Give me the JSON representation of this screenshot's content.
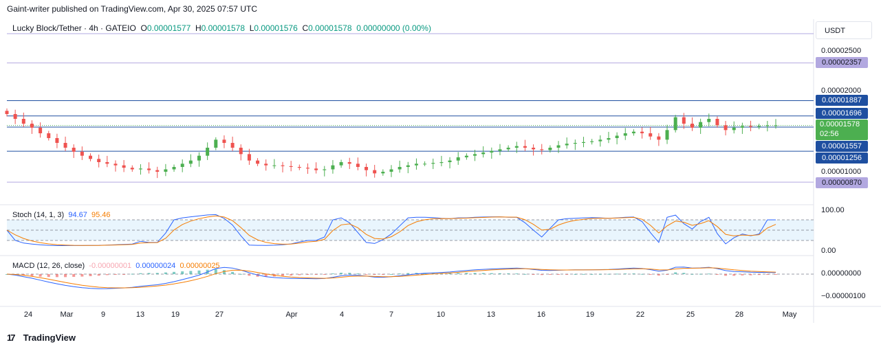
{
  "header": {
    "published": "Gaint-writer published on TradingView.com, Apr 30, 2025 07:57 UTC"
  },
  "legend": {
    "symbol": "Lucky Block/Tether · 4h · GATEIO",
    "o_label": "O",
    "o": "0.00001577",
    "h_label": "H",
    "h": "0.00001578",
    "l_label": "L",
    "l": "0.00001576",
    "c_label": "C",
    "c": "0.00001578",
    "change": "0.00000000 (0.00%)"
  },
  "currency": "USDT",
  "price_axis_ticks": [
    "0.00002500",
    "0.00002000",
    "0.00001000"
  ],
  "price_labels": [
    {
      "value": "0.00002357",
      "color": "#b2a8e0"
    },
    {
      "value": "0.00001887",
      "color": "#1e4fa0"
    },
    {
      "value": "0.00001696",
      "color": "#1e4fa0"
    },
    {
      "value": "0.00001578",
      "color": "#4caf50",
      "countdown": "02:56"
    },
    {
      "value": "0.00001557",
      "color": "#1e4fa0"
    },
    {
      "value": "0.00001256",
      "color": "#1e4fa0"
    },
    {
      "value": "0.00000870",
      "color": "#b2a8e0"
    }
  ],
  "stoch": {
    "name": "Stoch (14, 1, 3)",
    "k": "94.67",
    "d": "95.46",
    "ticks": [
      "100.00",
      "0.00"
    ],
    "k_color": "#2962ff",
    "d_color": "#f57c00"
  },
  "macd": {
    "name": "MACD (12, 26, close)",
    "hist": "-0.00000001",
    "macd": "0.00000024",
    "signal": "0.00000025",
    "ticks": [
      "0.00000000",
      "−0.00000100"
    ],
    "hist_color": "#f7a5b0",
    "macd_color": "#2962ff",
    "signal_color": "#f57c00"
  },
  "x_axis": [
    "24",
    "Mar",
    "9",
    "13",
    "19",
    "27",
    "Apr",
    "4",
    "7",
    "10",
    "13",
    "16",
    "19",
    "22",
    "25",
    "28",
    "May"
  ],
  "footer": {
    "brand": "TradingView"
  },
  "chart_data": {
    "type": "candlestick",
    "title": "Lucky Block/Tether · 4h · GATEIO",
    "y_range": [
      6.5e-06,
      2.8e-05
    ],
    "horizontal_levels": [
      2.357e-05,
      1.887e-05,
      1.696e-05,
      1.557e-05,
      1.256e-05,
      8.7e-06
    ],
    "close_series": [
      1.72,
      1.66,
      1.6,
      1.55,
      1.48,
      1.42,
      1.36,
      1.3,
      1.25,
      1.2,
      1.16,
      1.12,
      1.1,
      1.08,
      1.05,
      1.03,
      1.04,
      1.02,
      1.0,
      1.03,
      1.06,
      1.1,
      1.14,
      1.2,
      1.3,
      1.4,
      1.36,
      1.3,
      1.22,
      1.14,
      1.1,
      1.08,
      1.08,
      1.07,
      1.06,
      1.05,
      1.04,
      1.02,
      1.03,
      1.08,
      1.12,
      1.1,
      1.06,
      1.02,
      0.98,
      1.0,
      1.03,
      1.06,
      1.08,
      1.1,
      1.1,
      1.11,
      1.12,
      1.14,
      1.18,
      1.2,
      1.22,
      1.24,
      1.26,
      1.28,
      1.3,
      1.32,
      1.3,
      1.28,
      1.27,
      1.3,
      1.33,
      1.35,
      1.36,
      1.37,
      1.38,
      1.4,
      1.42,
      1.45,
      1.48,
      1.5,
      1.48,
      1.44,
      1.4,
      1.52,
      1.68,
      1.6,
      1.55,
      1.62,
      1.66,
      1.58,
      1.52,
      1.55,
      1.57,
      1.56,
      1.57,
      1.58,
      1.58
    ],
    "stoch_k_range": [
      0,
      100
    ],
    "stoch_bands": [
      80,
      50,
      20
    ]
  }
}
